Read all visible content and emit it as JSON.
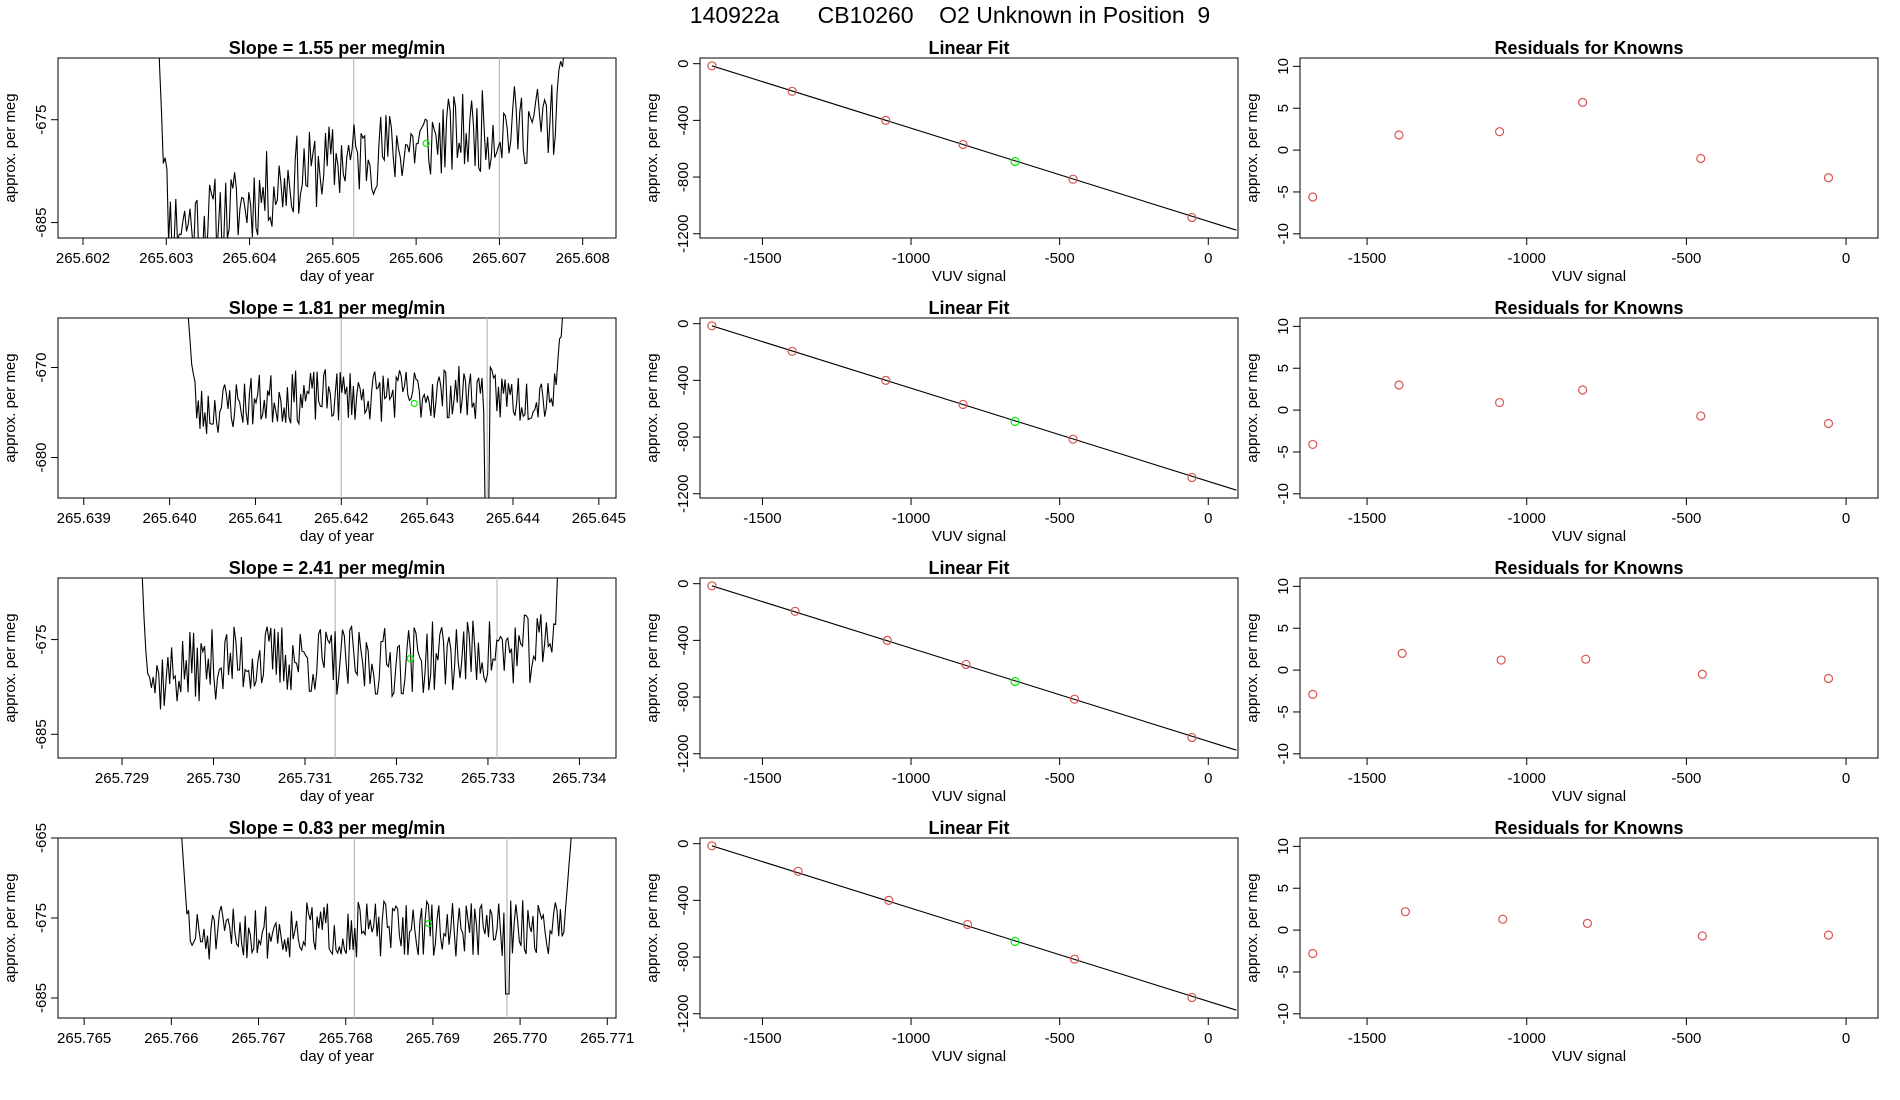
{
  "page": {
    "title": "140922a      CB10260    O2 Unknown in Position  9"
  },
  "colors": {
    "unknown_point": "#00ee00",
    "known_point": "#d9534f",
    "line": "#000000",
    "marker_lines": "#bbbbbb"
  },
  "chart_data": [
    {
      "type": "line",
      "row": 0,
      "col": 0,
      "title": "Slope =  1.55  per meg/min",
      "xlabel": "day of year",
      "ylabel": "approx. per meg",
      "xlim": [
        265.6017,
        265.6084
      ],
      "ylim": [
        -686.5,
        -669.0
      ],
      "xticks": [
        265.602,
        265.603,
        265.604,
        265.605,
        265.606,
        265.607,
        265.608
      ],
      "xtick_labels": [
        "265.602",
        "265.603",
        "265.604",
        "265.605",
        "265.606",
        "265.607",
        "265.608"
      ],
      "yticks": [
        -675,
        -685
      ],
      "ytick_labels": [
        "-675",
        "-685"
      ],
      "series_x_range": [
        265.6029,
        265.6078
      ],
      "baseline_profile": [
        0.0,
        0.0,
        0.2,
        0.45,
        0.6,
        0.7,
        0.8,
        0.88,
        0.95,
        1.0
      ],
      "level_start": -685.0,
      "level_end": -675.0,
      "noise_amplitude": 4.0,
      "edge_high": -665,
      "seed": 11,
      "marker_lines_x": [
        265.60525,
        265.607
      ],
      "unknown_point": {
        "x": 265.60612,
        "y": -677.3
      }
    },
    {
      "type": "scatter",
      "row": 0,
      "col": 1,
      "title": "Linear Fit",
      "xlabel": "VUV signal",
      "ylabel": "approx. per meg",
      "xlim": [
        -1710,
        100
      ],
      "ylim": [
        -1230,
        40
      ],
      "xticks": [
        -1500,
        -1000,
        -500,
        0
      ],
      "xtick_labels": [
        "-1500",
        "-1000",
        "-500",
        "0"
      ],
      "yticks": [
        0,
        -400,
        -800,
        -1200
      ],
      "ytick_labels": [
        "0",
        "-400",
        "-800",
        "-1200"
      ],
      "fit_line": {
        "x": [
          -1670,
          95
        ],
        "y": [
          -15,
          -1175
        ]
      },
      "known_points": {
        "x": [
          -1670,
          -1400,
          -1085,
          -825,
          -455,
          -55
        ],
        "y": [
          -15,
          -195,
          -400,
          -570,
          -815,
          -1085
        ]
      },
      "unknown_point": {
        "x": -650,
        "y": -690
      }
    },
    {
      "type": "scatter",
      "row": 0,
      "col": 2,
      "title": "Residuals for Knowns",
      "xlabel": "VUV signal",
      "ylabel": "approx. per meg",
      "xlim": [
        -1710,
        100
      ],
      "ylim": [
        -10.5,
        11
      ],
      "xticks": [
        -1500,
        -1000,
        -500,
        0
      ],
      "xtick_labels": [
        "-1500",
        "-1000",
        "-500",
        "0"
      ],
      "yticks": [
        10,
        5,
        0,
        -5,
        -10
      ],
      "ytick_labels": [
        "10",
        "5",
        "0",
        "-5",
        "-10"
      ],
      "known_points": {
        "x": [
          -1670,
          -1400,
          -1085,
          -825,
          -455,
          -55
        ],
        "y": [
          -5.6,
          1.8,
          2.2,
          5.7,
          -1.0,
          -3.3
        ]
      }
    },
    {
      "type": "line",
      "row": 1,
      "col": 0,
      "title": "Slope =  1.81  per meg/min",
      "xlabel": "day of year",
      "ylabel": "approx. per meg",
      "xlim": [
        265.6387,
        265.6452
      ],
      "ylim": [
        -684.5,
        -664.5
      ],
      "xticks": [
        265.639,
        265.64,
        265.641,
        265.642,
        265.643,
        265.644,
        265.645
      ],
      "xtick_labels": [
        "265.639",
        "265.640",
        "265.641",
        "265.642",
        "265.643",
        "265.644",
        "265.645"
      ],
      "yticks": [
        -670,
        -680
      ],
      "ytick_labels": [
        "-670",
        "-680"
      ],
      "series_x_range": [
        265.6402,
        265.6446
      ],
      "baseline_profile": [
        0.0,
        0.3,
        0.45,
        0.5,
        0.55,
        0.55,
        0.6,
        0.6,
        0.5,
        0.7
      ],
      "level_start": -675.5,
      "level_end": -671.0,
      "noise_amplitude": 3.0,
      "edge_high": -661,
      "seed": 23,
      "dip": {
        "x": 265.6437,
        "y": -687
      },
      "marker_lines_x": [
        265.642,
        265.6437
      ],
      "unknown_point": {
        "x": 265.64285,
        "y": -674.0
      }
    },
    {
      "type": "scatter",
      "row": 1,
      "col": 1,
      "title": "Linear Fit",
      "xlabel": "VUV signal",
      "ylabel": "approx. per meg",
      "xlim": [
        -1710,
        100
      ],
      "ylim": [
        -1230,
        40
      ],
      "xticks": [
        -1500,
        -1000,
        -500,
        0
      ],
      "xtick_labels": [
        "-1500",
        "-1000",
        "-500",
        "0"
      ],
      "yticks": [
        0,
        -400,
        -800,
        -1200
      ],
      "ytick_labels": [
        "0",
        "-400",
        "-800",
        "-1200"
      ],
      "fit_line": {
        "x": [
          -1670,
          95
        ],
        "y": [
          -15,
          -1175
        ]
      },
      "known_points": {
        "x": [
          -1670,
          -1400,
          -1085,
          -825,
          -455,
          -55
        ],
        "y": [
          -15,
          -195,
          -400,
          -570,
          -815,
          -1085
        ]
      },
      "unknown_point": {
        "x": -650,
        "y": -690
      }
    },
    {
      "type": "scatter",
      "row": 1,
      "col": 2,
      "title": "Residuals for Knowns",
      "xlabel": "VUV signal",
      "ylabel": "approx. per meg",
      "xlim": [
        -1710,
        100
      ],
      "ylim": [
        -10.5,
        11
      ],
      "xticks": [
        -1500,
        -1000,
        -500,
        0
      ],
      "xtick_labels": [
        "-1500",
        "-1000",
        "-500",
        "0"
      ],
      "yticks": [
        10,
        5,
        0,
        -5,
        -10
      ],
      "ytick_labels": [
        "10",
        "5",
        "0",
        "-5",
        "-10"
      ],
      "known_points": {
        "x": [
          -1670,
          -1400,
          -1085,
          -825,
          -455,
          -55
        ],
        "y": [
          -4.1,
          3.0,
          0.9,
          2.4,
          -0.7,
          -1.6
        ]
      }
    },
    {
      "type": "line",
      "row": 2,
      "col": 0,
      "title": "Slope =  2.41  per meg/min",
      "xlabel": "day of year",
      "ylabel": "approx. per meg",
      "xlim": [
        265.7283,
        265.7344
      ],
      "ylim": [
        -687.5,
        -668.5
      ],
      "xticks": [
        265.729,
        265.73,
        265.731,
        265.732,
        265.733,
        265.734
      ],
      "xtick_labels": [
        "265.729",
        "265.730",
        "265.731",
        "265.732",
        "265.733",
        "265.734"
      ],
      "yticks": [
        -675,
        -685
      ],
      "ytick_labels": [
        "-675",
        "-685"
      ],
      "series_x_range": [
        265.7292,
        265.7338
      ],
      "baseline_profile": [
        0.0,
        0.4,
        0.55,
        0.6,
        0.55,
        0.5,
        0.6,
        0.7,
        0.75,
        0.9
      ],
      "level_start": -680.0,
      "level_end": -675.0,
      "noise_amplitude": 3.8,
      "edge_high": -665,
      "seed": 37,
      "marker_lines_x": [
        265.73133,
        265.7331
      ],
      "unknown_point": {
        "x": 265.73215,
        "y": -677.0
      }
    },
    {
      "type": "scatter",
      "row": 2,
      "col": 1,
      "title": "Linear Fit",
      "xlabel": "VUV signal",
      "ylabel": "approx. per meg",
      "xlim": [
        -1710,
        100
      ],
      "ylim": [
        -1230,
        40
      ],
      "xticks": [
        -1500,
        -1000,
        -500,
        0
      ],
      "xtick_labels": [
        "-1500",
        "-1000",
        "-500",
        "0"
      ],
      "yticks": [
        0,
        -400,
        -800,
        -1200
      ],
      "ytick_labels": [
        "0",
        "-400",
        "-800",
        "-1200"
      ],
      "fit_line": {
        "x": [
          -1670,
          95
        ],
        "y": [
          -15,
          -1175
        ]
      },
      "known_points": {
        "x": [
          -1670,
          -1390,
          -1080,
          -815,
          -450,
          -55
        ],
        "y": [
          -15,
          -195,
          -400,
          -570,
          -815,
          -1085
        ]
      },
      "unknown_point": {
        "x": -650,
        "y": -690
      }
    },
    {
      "type": "scatter",
      "row": 2,
      "col": 2,
      "title": "Residuals for Knowns",
      "xlabel": "VUV signal",
      "ylabel": "approx. per meg",
      "xlim": [
        -1710,
        100
      ],
      "ylim": [
        -10.5,
        11
      ],
      "xticks": [
        -1500,
        -1000,
        -500,
        0
      ],
      "xtick_labels": [
        "-1500",
        "-1000",
        "-500",
        "0"
      ],
      "yticks": [
        10,
        5,
        0,
        -5,
        -10
      ],
      "ytick_labels": [
        "10",
        "5",
        "0",
        "-5",
        "-10"
      ],
      "known_points": {
        "x": [
          -1670,
          -1390,
          -1080,
          -815,
          -450,
          -55
        ],
        "y": [
          -2.9,
          2.0,
          1.2,
          1.3,
          -0.5,
          -1.0
        ]
      }
    },
    {
      "type": "line",
      "row": 3,
      "col": 0,
      "title": "Slope =  0.83  per meg/min",
      "xlabel": "day of year",
      "ylabel": "approx. per meg",
      "xlim": [
        265.7647,
        265.7711
      ],
      "ylim": [
        -687.5,
        -665.0
      ],
      "xticks": [
        265.765,
        265.766,
        265.767,
        265.768,
        265.769,
        265.77,
        265.771
      ],
      "xtick_labels": [
        "265.765",
        "265.766",
        "265.767",
        "265.768",
        "265.769",
        "265.770",
        "265.771"
      ],
      "yticks": [
        -665,
        -675,
        -685
      ],
      "ytick_labels": [
        "-665",
        "-675",
        "-685"
      ],
      "series_x_range": [
        265.7661,
        265.7706
      ],
      "baseline_profile": [
        0.0,
        0.35,
        0.45,
        0.5,
        0.5,
        0.55,
        0.55,
        0.55,
        0.6,
        0.7
      ],
      "level_start": -678.0,
      "level_end": -675.0,
      "noise_amplitude": 3.5,
      "edge_high": -662,
      "seed": 51,
      "dip": {
        "x": 265.76985,
        "y": -684.5
      },
      "marker_lines_x": [
        265.7681,
        265.76985
      ],
      "unknown_point": {
        "x": 265.76895,
        "y": -675.7
      }
    },
    {
      "type": "scatter",
      "row": 3,
      "col": 1,
      "title": "Linear Fit",
      "xlabel": "VUV signal",
      "ylabel": "approx. per meg",
      "xlim": [
        -1710,
        100
      ],
      "ylim": [
        -1230,
        40
      ],
      "xticks": [
        -1500,
        -1000,
        -500,
        0
      ],
      "xtick_labels": [
        "-1500",
        "-1000",
        "-500",
        "0"
      ],
      "yticks": [
        0,
        -400,
        -800,
        -1200
      ],
      "ytick_labels": [
        "0",
        "-400",
        "-800",
        "-1200"
      ],
      "fit_line": {
        "x": [
          -1670,
          95
        ],
        "y": [
          -15,
          -1175
        ]
      },
      "known_points": {
        "x": [
          -1670,
          -1380,
          -1075,
          -810,
          -450,
          -55
        ],
        "y": [
          -15,
          -195,
          -400,
          -570,
          -815,
          -1085
        ]
      },
      "unknown_point": {
        "x": -650,
        "y": -690
      }
    },
    {
      "type": "scatter",
      "row": 3,
      "col": 2,
      "title": "Residuals for Knowns",
      "xlabel": "VUV signal",
      "ylabel": "approx. per meg",
      "xlim": [
        -1710,
        100
      ],
      "ylim": [
        -10.5,
        11
      ],
      "xticks": [
        -1500,
        -1000,
        -500,
        0
      ],
      "xtick_labels": [
        "-1500",
        "-1000",
        "-500",
        "0"
      ],
      "yticks": [
        10,
        5,
        0,
        -5,
        -10
      ],
      "ytick_labels": [
        "10",
        "5",
        "0",
        "-5",
        "-10"
      ],
      "known_points": {
        "x": [
          -1670,
          -1380,
          -1075,
          -810,
          -450,
          -55
        ],
        "y": [
          -2.8,
          2.2,
          1.3,
          0.8,
          -0.7,
          -0.6
        ]
      }
    }
  ]
}
